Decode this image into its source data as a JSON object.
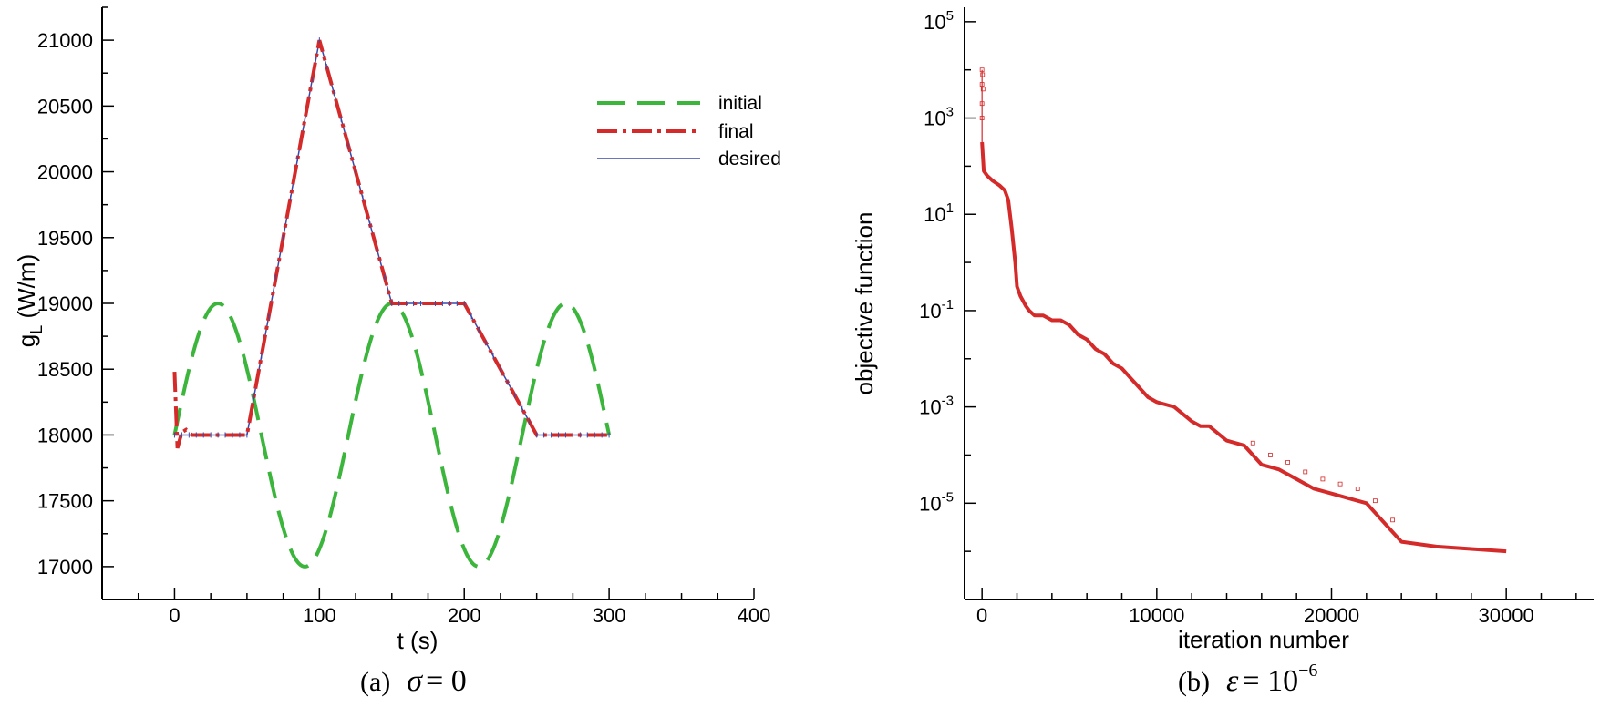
{
  "chart_data": [
    {
      "type": "line",
      "panel_id": "a",
      "caption": {
        "prefix": "(a)",
        "symbol": "σ",
        "relation": "= 0"
      },
      "xlabel": "t (s)",
      "ylabel": "g_L (W/m)",
      "ylabel_main": "g",
      "ylabel_sub": "L",
      "ylabel_unit": " (W/m)",
      "xlim": [
        -50,
        400
      ],
      "ylim": [
        16750,
        21250
      ],
      "xticks": [
        0,
        100,
        200,
        300,
        400
      ],
      "yticks": [
        17000,
        17500,
        18000,
        18500,
        19000,
        19500,
        20000,
        20500,
        21000
      ],
      "legend_position": "top-right",
      "series": [
        {
          "name": "initial",
          "color": "#3cb53c",
          "style": "dashed",
          "description": "18000 + 1000*sin(pi*t/60) for t in [0,300]",
          "x": [
            0,
            15,
            30,
            45,
            60,
            75,
            90,
            105,
            120,
            135,
            150,
            165,
            180,
            195,
            210,
            225,
            240,
            255,
            270,
            285,
            300
          ],
          "y": [
            18000,
            18707,
            19000,
            18707,
            18000,
            17293,
            17000,
            17293,
            18000,
            18707,
            19000,
            18707,
            18000,
            17293,
            17000,
            17293,
            18000,
            18707,
            19000,
            18707,
            18000
          ]
        },
        {
          "name": "final",
          "color": "#d42a2a",
          "style": "dashdot",
          "x": [
            0,
            2,
            5,
            8,
            12,
            20,
            50,
            100,
            150,
            200,
            250,
            300
          ],
          "y": [
            18480,
            17900,
            18020,
            18040,
            18000,
            18000,
            18000,
            21000,
            19000,
            19000,
            18000,
            18000
          ]
        },
        {
          "name": "desired",
          "color": "#3b49a8",
          "style": "solid",
          "x": [
            0,
            50,
            100,
            150,
            200,
            250,
            300
          ],
          "y": [
            18000,
            18000,
            21000,
            19000,
            19000,
            18000,
            18000
          ]
        }
      ]
    },
    {
      "type": "line",
      "panel_id": "b",
      "caption": {
        "prefix": "(b)",
        "symbol": "ε",
        "relation": "= 10",
        "exponent": "−6"
      },
      "xlabel": "iteration number",
      "ylabel": "objective function",
      "yscale": "log",
      "xlim": [
        -1000,
        35000
      ],
      "ylim_exp": [
        -7,
        5.3
      ],
      "xticks": [
        0,
        10000,
        20000,
        30000
      ],
      "ytick_exponents": [
        -5,
        -3,
        -1,
        1,
        3,
        5
      ],
      "ytick_base": "10",
      "series": [
        {
          "name": "objective",
          "color": "#d42a2a",
          "style": "solid",
          "x": [
            0,
            100,
            300,
            600,
            1000,
            1300,
            1500,
            1700,
            1900,
            2000,
            2200,
            2500,
            2700,
            3000,
            3500,
            4000,
            4500,
            5000,
            5500,
            6000,
            6500,
            7000,
            7500,
            8000,
            8500,
            9000,
            9500,
            10000,
            11000,
            12000,
            12500,
            13000,
            14000,
            15000,
            16000,
            17000,
            18000,
            19000,
            20000,
            21000,
            22000,
            23000,
            24000,
            26000,
            28000,
            30000
          ],
          "y_log10": [
            2.5,
            1.9,
            1.8,
            1.7,
            1.6,
            1.5,
            1.3,
            0.7,
            0.0,
            -0.5,
            -0.7,
            -0.9,
            -1.0,
            -1.1,
            -1.1,
            -1.2,
            -1.2,
            -1.3,
            -1.5,
            -1.6,
            -1.8,
            -1.9,
            -2.1,
            -2.2,
            -2.4,
            -2.6,
            -2.8,
            -2.9,
            -3.0,
            -3.3,
            -3.4,
            -3.4,
            -3.7,
            -3.8,
            -4.2,
            -4.3,
            -4.5,
            -4.7,
            -4.8,
            -4.9,
            -5.0,
            -5.4,
            -5.8,
            -5.9,
            -5.95,
            -6.0
          ]
        }
      ]
    }
  ]
}
